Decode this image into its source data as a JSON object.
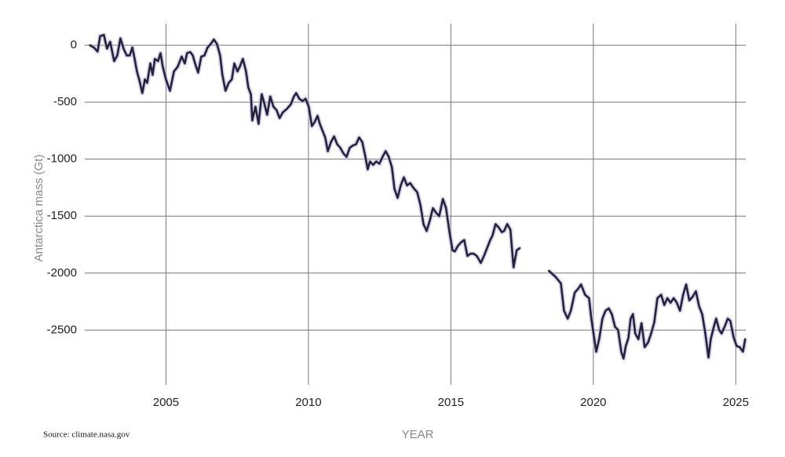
{
  "chart_data": {
    "type": "line",
    "ylabel": "Antarctica mass (Gt)",
    "xlabel": "YEAR",
    "source": "Source: climate.nasa.gov",
    "color": "#25233b",
    "grid": true,
    "xlim": [
      2002.15,
      2025.35
    ],
    "ylim": [
      -2980,
      190
    ],
    "xticks": [
      2005,
      2010,
      2015,
      2020,
      2025
    ],
    "yticks": [
      0,
      -500,
      -1000,
      -1500,
      -2000,
      -2500
    ],
    "x": [
      2002.33,
      2002.47,
      2002.6,
      2002.69,
      2002.82,
      2002.93,
      2003.04,
      2003.18,
      2003.29,
      2003.4,
      2003.51,
      2003.62,
      2003.73,
      2003.82,
      2003.9,
      2003.98,
      2004.06,
      2004.17,
      2004.26,
      2004.34,
      2004.45,
      2004.53,
      2004.61,
      2004.72,
      2004.81,
      2004.89,
      2005.0,
      2005.14,
      2005.28,
      2005.41,
      2005.55,
      2005.66,
      2005.74,
      2005.85,
      2005.94,
      2006.02,
      2006.13,
      2006.24,
      2006.35,
      2006.46,
      2006.57,
      2006.68,
      2006.79,
      2006.9,
      2006.98,
      2007.09,
      2007.2,
      2007.31,
      2007.4,
      2007.51,
      2007.59,
      2007.7,
      2007.81,
      2007.89,
      2007.98,
      2008.03,
      2008.14,
      2008.25,
      2008.36,
      2008.44,
      2008.55,
      2008.66,
      2008.77,
      2008.88,
      2008.99,
      2009.1,
      2009.24,
      2009.38,
      2009.49,
      2009.57,
      2009.68,
      2009.79,
      2009.9,
      2010.01,
      2010.12,
      2010.23,
      2010.32,
      2010.4,
      2010.51,
      2010.59,
      2010.68,
      2010.79,
      2010.9,
      2011.01,
      2011.12,
      2011.23,
      2011.34,
      2011.45,
      2011.56,
      2011.67,
      2011.78,
      2011.89,
      2012.0,
      2012.08,
      2012.16,
      2012.27,
      2012.38,
      2012.49,
      2012.6,
      2012.71,
      2012.82,
      2012.93,
      2013.02,
      2013.13,
      2013.24,
      2013.35,
      2013.46,
      2013.57,
      2013.68,
      2013.82,
      2013.93,
      2014.04,
      2014.15,
      2014.26,
      2014.37,
      2014.48,
      2014.59,
      2014.72,
      2014.83,
      2014.95,
      2015.06,
      2015.14,
      2015.25,
      2015.36,
      2015.47,
      2015.58,
      2015.69,
      2015.8,
      2015.91,
      2016.05,
      2016.16,
      2016.27,
      2016.38,
      2016.46,
      2016.57,
      2016.68,
      2016.79,
      2016.87,
      2016.98,
      2017.09,
      2017.2,
      2017.31,
      2017.42,
      2017.9,
      2018.44,
      2018.66,
      2018.86,
      2018.97,
      2019.1,
      2019.21,
      2019.35,
      2019.46,
      2019.57,
      2019.71,
      2019.85,
      2019.93,
      2020.1,
      2020.21,
      2020.32,
      2020.43,
      2020.54,
      2020.65,
      2020.76,
      2020.87,
      2020.98,
      2021.06,
      2021.14,
      2021.23,
      2021.31,
      2021.39,
      2021.47,
      2021.58,
      2021.69,
      2021.8,
      2021.92,
      2022.03,
      2022.14,
      2022.25,
      2022.38,
      2022.49,
      2022.6,
      2022.71,
      2022.82,
      2022.93,
      2023.04,
      2023.15,
      2023.26,
      2023.37,
      2023.48,
      2023.6,
      2023.71,
      2023.82,
      2023.93,
      2024.04,
      2024.12,
      2024.23,
      2024.31,
      2024.42,
      2024.5,
      2024.61,
      2024.72,
      2024.81,
      2024.92,
      2025.03,
      2025.14,
      2025.25,
      2025.33
    ],
    "values": [
      0,
      -20,
      -55,
      80,
      90,
      -30,
      30,
      -140,
      -90,
      60,
      -30,
      -90,
      -90,
      -20,
      -120,
      -230,
      -300,
      -420,
      -300,
      -330,
      -160,
      -260,
      -120,
      -140,
      -70,
      -190,
      -300,
      -400,
      -230,
      -190,
      -100,
      -160,
      -70,
      -60,
      -90,
      -160,
      -240,
      -100,
      -90,
      -20,
      10,
      50,
      10,
      -90,
      -260,
      -400,
      -330,
      -300,
      -160,
      -230,
      -190,
      -120,
      -230,
      -370,
      -430,
      -660,
      -540,
      -690,
      -430,
      -500,
      -610,
      -450,
      -540,
      -570,
      -640,
      -590,
      -560,
      -520,
      -450,
      -420,
      -470,
      -490,
      -470,
      -540,
      -710,
      -670,
      -620,
      -690,
      -760,
      -810,
      -930,
      -850,
      -800,
      -870,
      -900,
      -950,
      -980,
      -900,
      -880,
      -870,
      -810,
      -850,
      -980,
      -1090,
      -1020,
      -1050,
      -1020,
      -1040,
      -980,
      -930,
      -980,
      -1070,
      -1260,
      -1340,
      -1230,
      -1160,
      -1230,
      -1210,
      -1250,
      -1290,
      -1400,
      -1570,
      -1630,
      -1540,
      -1430,
      -1470,
      -1500,
      -1350,
      -1430,
      -1640,
      -1800,
      -1810,
      -1760,
      -1730,
      -1710,
      -1850,
      -1830,
      -1830,
      -1850,
      -1910,
      -1850,
      -1780,
      -1710,
      -1670,
      -1570,
      -1600,
      -1640,
      -1630,
      -1570,
      -1620,
      -1950,
      -1800,
      -1780,
      null,
      -1980,
      -2030,
      -2090,
      -2330,
      -2400,
      -2330,
      -2170,
      -2140,
      -2100,
      -2190,
      -2220,
      -2400,
      -2690,
      -2570,
      -2400,
      -2330,
      -2310,
      -2360,
      -2470,
      -2500,
      -2690,
      -2750,
      -2640,
      -2570,
      -2400,
      -2360,
      -2530,
      -2580,
      -2440,
      -2650,
      -2610,
      -2530,
      -2430,
      -2220,
      -2190,
      -2280,
      -2220,
      -2260,
      -2220,
      -2260,
      -2330,
      -2190,
      -2100,
      -2240,
      -2210,
      -2160,
      -2290,
      -2360,
      -2530,
      -2740,
      -2580,
      -2470,
      -2400,
      -2500,
      -2530,
      -2470,
      -2400,
      -2420,
      -2560,
      -2640,
      -2650,
      -2690,
      -2580
    ]
  }
}
